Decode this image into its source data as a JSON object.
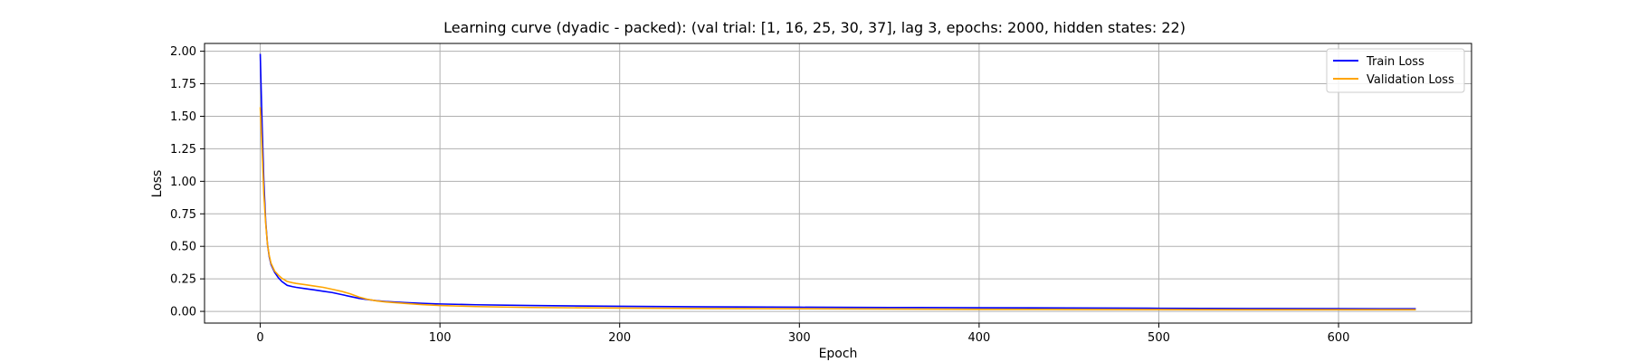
{
  "chart_data": {
    "type": "line",
    "title": "Learning curve (dyadic - packed): (val trial: [1, 16, 25, 30, 37], lag 3, epochs: 2000, hidden states: 22)",
    "xlabel": "Epoch",
    "ylabel": "Loss",
    "xlim": [
      -31,
      674
    ],
    "ylim": [
      -0.09,
      2.06
    ],
    "xticks": [
      0,
      100,
      200,
      300,
      400,
      500,
      600
    ],
    "xtick_labels": [
      "0",
      "100",
      "200",
      "300",
      "400",
      "500",
      "600"
    ],
    "yticks": [
      0.0,
      0.25,
      0.5,
      0.75,
      1.0,
      1.25,
      1.5,
      1.75,
      2.0
    ],
    "ytick_labels": [
      "0.00",
      "0.25",
      "0.50",
      "0.75",
      "1.00",
      "1.25",
      "1.50",
      "1.75",
      "2.00"
    ],
    "grid": true,
    "legend_position": "top-right",
    "series": [
      {
        "name": "Train Loss",
        "color": "#0000ff",
        "x": [
          0,
          1,
          2,
          3,
          4,
          5,
          6,
          8,
          10,
          12,
          15,
          18,
          20,
          25,
          30,
          35,
          40,
          45,
          50,
          55,
          60,
          65,
          70,
          80,
          90,
          100,
          120,
          150,
          200,
          250,
          300,
          350,
          400,
          450,
          500,
          550,
          600,
          643
        ],
        "y": [
          1.98,
          1.45,
          1.0,
          0.7,
          0.52,
          0.42,
          0.36,
          0.3,
          0.26,
          0.23,
          0.2,
          0.19,
          0.185,
          0.175,
          0.165,
          0.155,
          0.145,
          0.13,
          0.115,
          0.1,
          0.09,
          0.082,
          0.076,
          0.068,
          0.062,
          0.057,
          0.051,
          0.045,
          0.039,
          0.035,
          0.032,
          0.03,
          0.028,
          0.026,
          0.024,
          0.022,
          0.021,
          0.02
        ]
      },
      {
        "name": "Validation Loss",
        "color": "#ffa500",
        "x": [
          0,
          1,
          2,
          3,
          4,
          5,
          6,
          8,
          10,
          12,
          15,
          18,
          20,
          25,
          30,
          35,
          40,
          45,
          50,
          55,
          60,
          65,
          70,
          80,
          90,
          100,
          120,
          150,
          200,
          250,
          300,
          350,
          400,
          450,
          500,
          550,
          600,
          643
        ],
        "y": [
          1.57,
          1.25,
          0.9,
          0.68,
          0.52,
          0.43,
          0.37,
          0.31,
          0.28,
          0.255,
          0.23,
          0.22,
          0.215,
          0.205,
          0.195,
          0.185,
          0.17,
          0.155,
          0.135,
          0.11,
          0.092,
          0.08,
          0.072,
          0.062,
          0.052,
          0.045,
          0.037,
          0.03,
          0.025,
          0.022,
          0.02,
          0.018,
          0.016,
          0.015,
          0.014,
          0.013,
          0.013,
          0.013
        ]
      }
    ]
  }
}
